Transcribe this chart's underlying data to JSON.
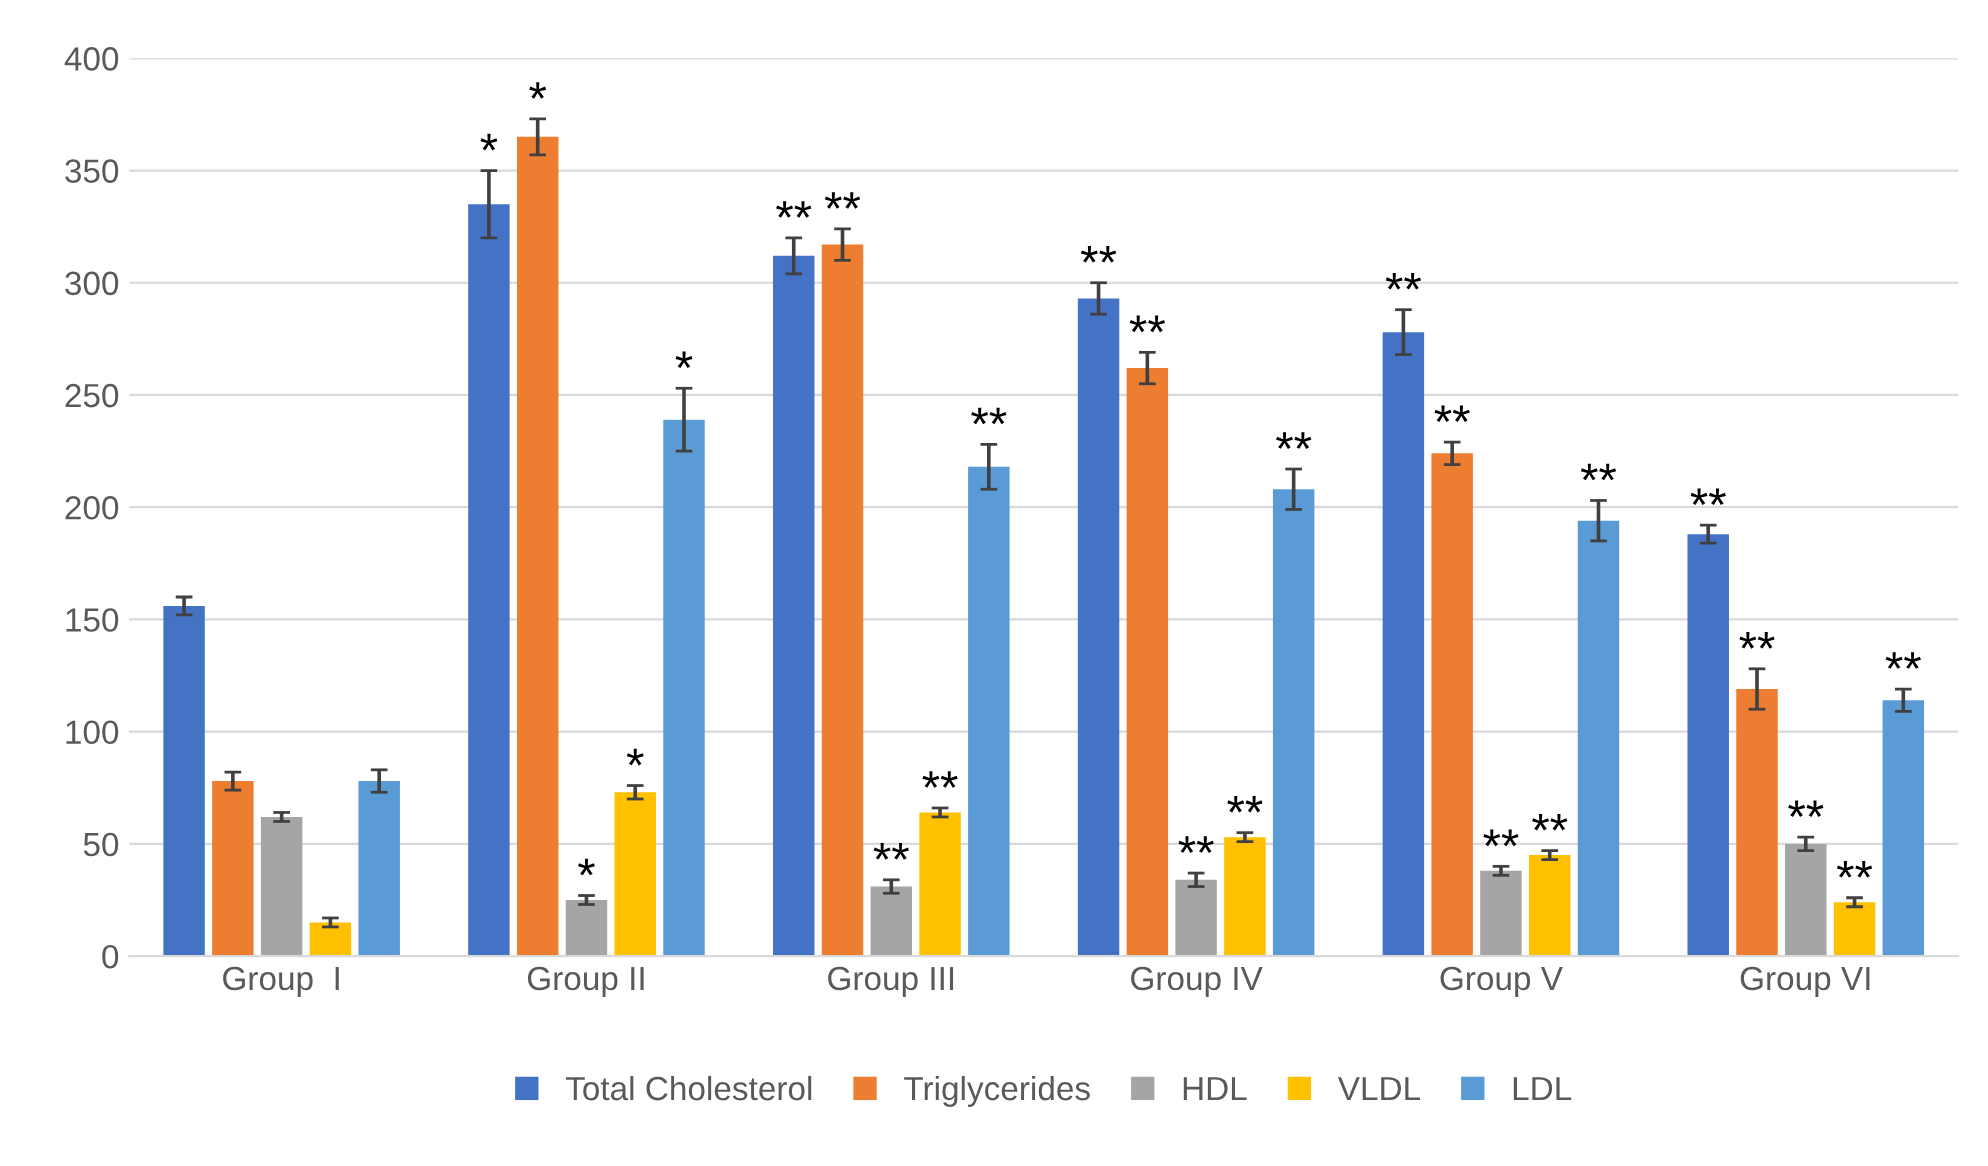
{
  "chart_data": {
    "type": "bar",
    "categories": [
      "Group  I",
      "Group II",
      "Group III",
      "Group IV",
      "Group V",
      "Group VI"
    ],
    "series": [
      {
        "name": "Total Cholesterol",
        "color": "#4472c4",
        "values": [
          156,
          335,
          312,
          293,
          278,
          188
        ],
        "errors": [
          4,
          15,
          8,
          7,
          10,
          4
        ],
        "value_labels": [
          null,
          "*",
          "**",
          "**",
          "**",
          "**"
        ]
      },
      {
        "name": "Triglycerides",
        "color": "#ed7d31",
        "values": [
          78,
          365,
          317,
          262,
          224,
          119
        ],
        "errors": [
          4,
          8,
          7,
          7,
          5,
          9
        ],
        "value_labels": [
          null,
          "*",
          "**",
          "**",
          "**",
          "**"
        ]
      },
      {
        "name": "HDL",
        "color": "#a5a5a5",
        "values": [
          62,
          25,
          31,
          34,
          38,
          50
        ],
        "errors": [
          2,
          2,
          3,
          3,
          2,
          3
        ],
        "value_labels": [
          null,
          "*",
          "**",
          "**",
          "**",
          "**"
        ]
      },
      {
        "name": "VLDL",
        "color": "#ffc000",
        "values": [
          15,
          73,
          64,
          53,
          45,
          24
        ],
        "errors": [
          2,
          3,
          2,
          2,
          2,
          2
        ],
        "value_labels": [
          null,
          "*",
          "**",
          "**",
          "**",
          "**"
        ]
      },
      {
        "name": "LDL",
        "color": "#5b9bd5",
        "values": [
          78,
          239,
          218,
          208,
          194,
          114
        ],
        "errors": [
          5,
          14,
          10,
          9,
          9,
          5
        ],
        "value_labels": [
          null,
          "*",
          "**",
          "**",
          "**",
          "**"
        ]
      }
    ],
    "ylim": [
      0,
      400
    ],
    "yticks": [
      0,
      50,
      100,
      150,
      200,
      250,
      300,
      350,
      400
    ],
    "grid": "y",
    "legend": "bottom"
  }
}
